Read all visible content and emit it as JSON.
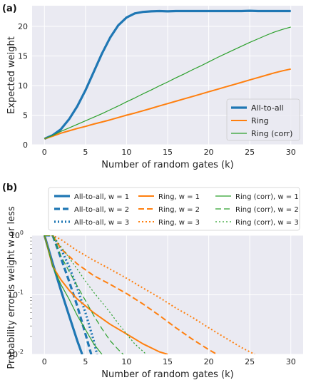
{
  "chart_data": [
    {
      "panel_label": "(a)",
      "type": "line",
      "xlabel": "Number of random gates (k)",
      "ylabel": "Expected weight",
      "xlim": [
        -1.5,
        31.5
      ],
      "ylim": [
        0,
        23.5
      ],
      "xticks": [
        "0",
        "5",
        "10",
        "15",
        "20",
        "25",
        "30"
      ],
      "yticks": [
        "0",
        "5",
        "10",
        "15",
        "20"
      ],
      "grid": true,
      "legend_position": "bottom-right",
      "series": [
        {
          "name": "All-to-all",
          "color": "#1f77b4",
          "x": [
            0,
            1,
            2,
            3,
            4,
            5,
            6,
            7,
            8,
            9,
            10,
            11,
            12,
            13,
            14,
            15,
            16,
            17,
            18,
            19,
            20,
            21,
            22,
            23,
            24,
            25,
            26,
            27,
            28,
            29,
            30
          ],
          "y": [
            1.0,
            1.6,
            2.6,
            4.3,
            6.5,
            9.2,
            12.3,
            15.4,
            18.1,
            20.2,
            21.5,
            22.2,
            22.45,
            22.55,
            22.6,
            22.55,
            22.6,
            22.6,
            22.6,
            22.6,
            22.6,
            22.6,
            22.6,
            22.6,
            22.6,
            22.65,
            22.6,
            22.6,
            22.6,
            22.6,
            22.6
          ]
        },
        {
          "name": "Ring",
          "color": "#ff7f0e",
          "x": [
            0,
            1,
            2,
            3,
            4,
            5,
            6,
            7,
            8,
            9,
            10,
            11,
            12,
            13,
            14,
            15,
            16,
            17,
            18,
            19,
            20,
            21,
            22,
            23,
            24,
            25,
            26,
            27,
            28,
            29,
            30
          ],
          "y": [
            1.0,
            1.45,
            1.95,
            2.35,
            2.75,
            3.1,
            3.5,
            3.85,
            4.2,
            4.6,
            5.0,
            5.35,
            5.75,
            6.15,
            6.55,
            6.95,
            7.35,
            7.75,
            8.15,
            8.55,
            8.95,
            9.35,
            9.75,
            10.15,
            10.55,
            10.95,
            11.35,
            11.75,
            12.15,
            12.5,
            12.8
          ]
        },
        {
          "name": "Ring (corr)",
          "color": "#2ca02c",
          "x": [
            0,
            1,
            2,
            3,
            4,
            5,
            6,
            7,
            8,
            9,
            10,
            11,
            12,
            13,
            14,
            15,
            16,
            17,
            18,
            19,
            20,
            21,
            22,
            23,
            24,
            25,
            26,
            27,
            28,
            29,
            30
          ],
          "y": [
            1.0,
            1.55,
            2.25,
            2.85,
            3.45,
            4.05,
            4.65,
            5.25,
            5.9,
            6.55,
            7.25,
            7.9,
            8.6,
            9.25,
            9.95,
            10.6,
            11.3,
            11.95,
            12.65,
            13.3,
            14.0,
            14.7,
            15.35,
            16.0,
            16.65,
            17.3,
            17.9,
            18.5,
            19.05,
            19.5,
            19.9
          ]
        }
      ]
    },
    {
      "panel_label": "(b)",
      "type": "line",
      "yscale": "log",
      "xlabel": "Number of random gates (k)",
      "ylabel": "Probability error is weight w or less",
      "xlim": [
        -1.5,
        31.5
      ],
      "ylim": [
        0.01,
        1.0
      ],
      "xticks": [
        "0",
        "5",
        "10",
        "15",
        "20",
        "25",
        "30"
      ],
      "yticks": [
        "10^-2",
        "10^-1",
        "10^0"
      ],
      "grid": true,
      "legend_position": "top",
      "series": [
        {
          "name": "All-to-all, w = 1",
          "color": "#1f77b4",
          "dash": "solid",
          "width": 3.2,
          "x": [
            0,
            1,
            2,
            3,
            4,
            4.6
          ],
          "y": [
            1.0,
            0.34,
            0.12,
            0.045,
            0.017,
            0.01
          ]
        },
        {
          "name": "All-to-all, w = 2",
          "color": "#1f77b4",
          "dash": "dashed",
          "width": 3.2,
          "x": [
            0,
            1,
            2,
            3,
            4,
            5,
            5.7
          ],
          "y": [
            1.0,
            1.0,
            0.42,
            0.17,
            0.065,
            0.022,
            0.01
          ]
        },
        {
          "name": "All-to-all, w = 3",
          "color": "#1f77b4",
          "dash": "dotted",
          "width": 3.2,
          "x": [
            0,
            1,
            2,
            3,
            4,
            5,
            6,
            6.4
          ],
          "y": [
            1.0,
            1.0,
            0.6,
            0.3,
            0.13,
            0.05,
            0.017,
            0.01
          ]
        },
        {
          "name": "Ring, w = 1",
          "color": "#ff7f0e",
          "dash": "solid",
          "width": 2.0,
          "x": [
            0,
            1,
            2,
            3,
            4,
            6,
            8,
            10,
            12,
            14,
            15
          ],
          "y": [
            1.0,
            0.3,
            0.18,
            0.12,
            0.085,
            0.05,
            0.032,
            0.022,
            0.015,
            0.011,
            0.01
          ]
        },
        {
          "name": "Ring, w = 2",
          "color": "#ff7f0e",
          "dash": "dashed",
          "width": 2.0,
          "x": [
            0,
            1,
            2,
            4,
            6,
            8,
            10,
            12,
            14,
            16,
            18,
            20,
            21
          ],
          "y": [
            1.0,
            1.0,
            0.6,
            0.33,
            0.21,
            0.15,
            0.105,
            0.07,
            0.045,
            0.028,
            0.018,
            0.012,
            0.01
          ]
        },
        {
          "name": "Ring, w = 3",
          "color": "#ff7f0e",
          "dash": "dotted",
          "width": 2.0,
          "x": [
            0,
            1,
            2,
            4,
            6,
            8,
            10,
            12,
            14,
            16,
            18,
            20,
            22,
            24,
            25.6
          ],
          "y": [
            1.0,
            1.0,
            0.85,
            0.55,
            0.38,
            0.27,
            0.19,
            0.13,
            0.09,
            0.06,
            0.042,
            0.028,
            0.019,
            0.013,
            0.01
          ]
        },
        {
          "name": "Ring (corr), w = 1",
          "color": "#2ca02c",
          "dash": "solid",
          "width": 1.2,
          "x": [
            0,
            1,
            2,
            3,
            4,
            5,
            6,
            7
          ],
          "y": [
            1.0,
            0.3,
            0.15,
            0.085,
            0.045,
            0.026,
            0.015,
            0.01
          ]
        },
        {
          "name": "Ring (corr), w = 2",
          "color": "#2ca02c",
          "dash": "dashed",
          "width": 1.2,
          "x": [
            0,
            1,
            2,
            3,
            4,
            5,
            6,
            7,
            8,
            9,
            9.6
          ],
          "y": [
            1.0,
            1.0,
            0.45,
            0.25,
            0.14,
            0.08,
            0.045,
            0.027,
            0.017,
            0.012,
            0.01
          ]
        },
        {
          "name": "Ring (corr), w = 3",
          "color": "#2ca02c",
          "dash": "dotted",
          "width": 1.2,
          "x": [
            0,
            1,
            2,
            3,
            4,
            5,
            6,
            7,
            8,
            9,
            10,
            11,
            12.4
          ],
          "y": [
            1.0,
            1.0,
            0.65,
            0.42,
            0.27,
            0.17,
            0.11,
            0.075,
            0.05,
            0.033,
            0.022,
            0.015,
            0.01
          ]
        }
      ]
    }
  ]
}
